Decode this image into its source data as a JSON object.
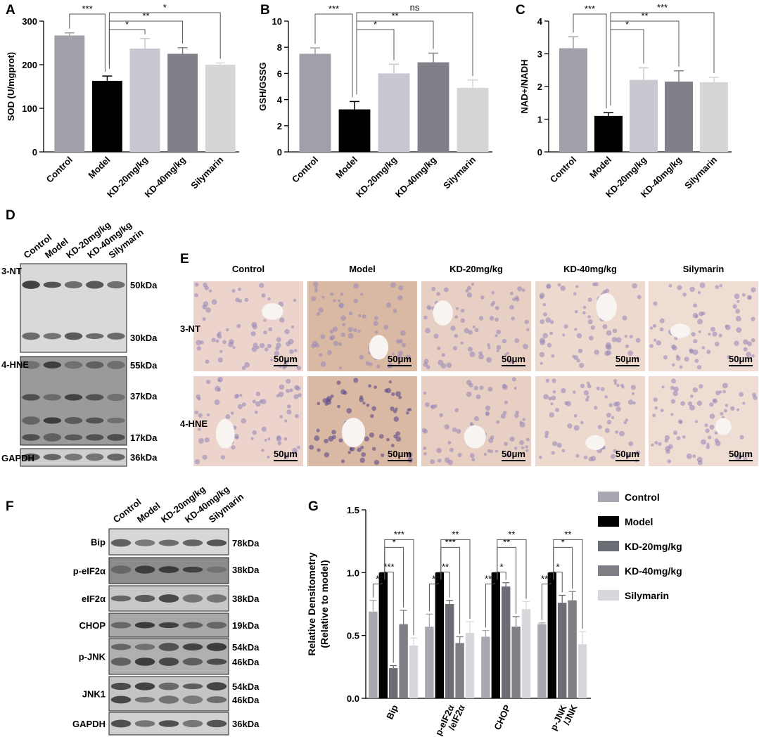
{
  "panel_labels": [
    "A",
    "B",
    "C",
    "D",
    "E",
    "F",
    "G"
  ],
  "chart_data": [
    {
      "type": "bar",
      "y_label": "SOD (U/mgprot)",
      "categories": [
        "Control",
        "Model",
        "KD-20mg/kg",
        "KD-40mg/kg",
        "Silymarin"
      ],
      "values": [
        267,
        163,
        237,
        225,
        200
      ],
      "errors": [
        6,
        11,
        23,
        14,
        4
      ],
      "colors": [
        "#a0a0a8",
        "#000000",
        "#c8c8d0",
        "#808088",
        "#d6d6d8"
      ],
      "ylim": [
        0,
        300
      ],
      "yticks": [
        0,
        100,
        200,
        300
      ],
      "significance": [
        "***",
        "*",
        "**",
        "*"
      ]
    },
    {
      "type": "bar",
      "y_label": "GSH/GSSG",
      "categories": [
        "Control",
        "Model",
        "KD-20mg/kg",
        "KD-40mg/kg",
        "Silymarin"
      ],
      "values": [
        7.5,
        3.25,
        6.0,
        6.85,
        4.9
      ],
      "errors": [
        0.45,
        0.6,
        0.7,
        0.7,
        0.6
      ],
      "colors": [
        "#a0a0a8",
        "#000000",
        "#c8c8d0",
        "#808088",
        "#d6d6d8"
      ],
      "ylim": [
        0,
        10
      ],
      "yticks": [
        0,
        2,
        4,
        6,
        8,
        10
      ],
      "significance": [
        "***",
        "*",
        "**",
        "ns"
      ]
    },
    {
      "type": "bar",
      "y_label": "NAD+/NADH",
      "categories": [
        "Control",
        "Model",
        "KD-20mg/kg",
        "KD-40mg/kg",
        "Silymarin"
      ],
      "values": [
        3.17,
        1.1,
        2.2,
        2.15,
        2.13
      ],
      "errors": [
        0.35,
        0.1,
        0.37,
        0.33,
        0.15
      ],
      "colors": [
        "#a0a0a8",
        "#000000",
        "#c8c8d0",
        "#808088",
        "#d6d6d8"
      ],
      "ylim": [
        0,
        4
      ],
      "yticks": [
        0,
        1,
        2,
        3,
        4
      ],
      "significance": [
        "***",
        "*",
        "**",
        "***"
      ]
    },
    {
      "type": "grouped_bar",
      "y_label": [
        "Relative Densitometry",
        "(Relative to model)"
      ],
      "categories": [
        [
          "Bip"
        ],
        [
          "p-eIF2α",
          "/eIF2α"
        ],
        [
          "CHOP"
        ],
        [
          "p-JNK",
          "/JNK"
        ]
      ],
      "series": [
        {
          "name": "Control",
          "color": "#a8a8b0",
          "values": [
            0.69,
            0.57,
            0.49,
            0.59
          ],
          "errors": [
            0.09,
            0.1,
            0.05,
            0.01
          ]
        },
        {
          "name": "Model",
          "color": "#000000",
          "values": [
            1,
            1,
            1,
            1
          ],
          "errors": [
            0,
            0,
            0,
            0
          ]
        },
        {
          "name": "KD-20mg/kg",
          "color": "#6a6e74",
          "values": [
            0.24,
            0.75,
            0.89,
            0.76
          ],
          "errors": [
            0.02,
            0.03,
            0.03,
            0.06
          ]
        },
        {
          "name": "KD-40mg/kg",
          "color": "#7e7e84",
          "values": [
            0.59,
            0.44,
            0.57,
            0.78
          ],
          "errors": [
            0.11,
            0.05,
            0.08,
            0.07
          ]
        },
        {
          "name": "Silymarin",
          "color": "#d8d8dc",
          "values": [
            0.42,
            0.52,
            0.71,
            0.43
          ],
          "errors": [
            0.06,
            0.09,
            0.06,
            0.1
          ]
        }
      ],
      "ylim": [
        0,
        1.5
      ],
      "yticks": [
        {
          "value": 0,
          "label": "0.0"
        },
        0.5,
        {
          "value": 1,
          "label": "1.0"
        },
        1.5
      ],
      "significance": [
        [
          "*",
          "***",
          "*",
          "***"
        ],
        [
          "*",
          "**",
          "***",
          "**"
        ],
        [
          "***",
          "*",
          "**",
          "**"
        ],
        [
          "***",
          "*",
          "*",
          "**"
        ]
      ],
      "legend": "right"
    }
  ],
  "western_blot_d": {
    "lanes": [
      "Control",
      "Model",
      "KD-20mg/kg",
      "KD-40mg/kg",
      "Silymarin"
    ],
    "rows": [
      {
        "label": "3-NT",
        "markers": [
          "50kDa",
          "30kDa"
        ]
      },
      {
        "label": "4-HNE",
        "markers": [
          "55kDa",
          "37kDa",
          "17kDa"
        ]
      },
      {
        "label": "GAPDH",
        "markers": [
          "36kDa"
        ]
      }
    ]
  },
  "histology_e": {
    "columns": [
      "Control",
      "Model",
      "KD-20mg/kg",
      "KD-40mg/kg",
      "Silymarin"
    ],
    "rows": [
      "3-NT",
      "4-HNE"
    ],
    "scale_bar": "50μm"
  },
  "western_blot_f": {
    "lanes": [
      "Control",
      "Model",
      "KD-20mg/kg",
      "KD-40mg/kg",
      "Silymarin"
    ],
    "rows": [
      {
        "label": "Bip",
        "markers": [
          "78kDa"
        ]
      },
      {
        "label": "p-eIF2α",
        "markers": [
          "38kDa"
        ]
      },
      {
        "label": "eIF2α",
        "markers": [
          "38kDa"
        ]
      },
      {
        "label": "CHOP",
        "markers": [
          "19kDa"
        ]
      },
      {
        "label": "p-JNK",
        "markers": [
          "54kDa",
          "46kDa"
        ]
      },
      {
        "label": "JNK1",
        "markers": [
          "54kDa",
          "46kDa"
        ]
      },
      {
        "label": "GAPDH",
        "markers": [
          "36kDa"
        ]
      }
    ]
  }
}
